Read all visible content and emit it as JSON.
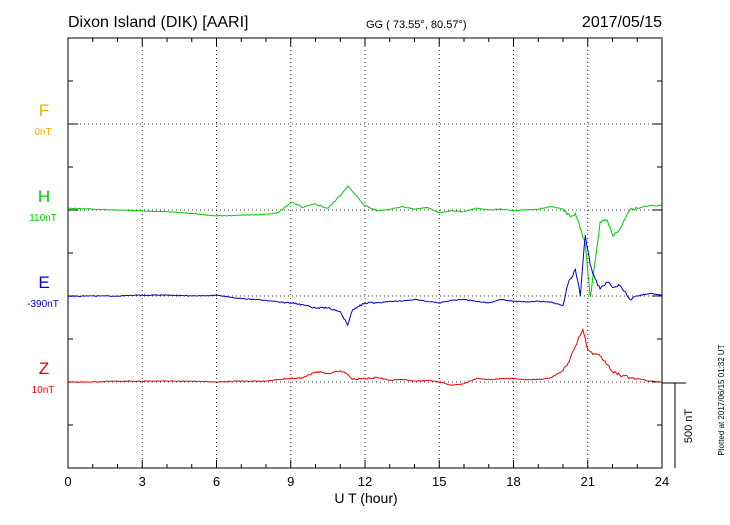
{
  "header": {
    "station": "Dixon Island (DIK)  [AARI]",
    "coords": "GG ( 73.55°,  80.57°)",
    "date": "2017/05/15"
  },
  "footer": {
    "plotted": "Plotted at 2017/06/15 01:32 UT"
  },
  "chart_data": {
    "type": "line",
    "title": "",
    "xlabel": "U T (hour)",
    "ylabel": "",
    "xlim": [
      0,
      24
    ],
    "x_ticks": [
      "0",
      "3",
      "6",
      "9",
      "12",
      "15",
      "18",
      "21",
      "24"
    ],
    "scale_bar": {
      "label": "500 nT",
      "value_nT": 500
    },
    "grid": true,
    "y_units": "nT (relative to each series baseline)",
    "panel_range_nT": [
      -1000,
      1500
    ],
    "components": [
      {
        "name": "F",
        "baseline_label": "0nT",
        "baseline_position_nT": 1000,
        "color": "#ffa500",
        "x": [],
        "y": []
      },
      {
        "name": "H",
        "baseline_label": "110nT",
        "baseline_position_nT": 500,
        "color": "#00cc00",
        "x": [
          0,
          1,
          2,
          3,
          4,
          5,
          6,
          7,
          8,
          8.5,
          9,
          9.5,
          10,
          10.5,
          11,
          11.3,
          11.5,
          12,
          12.5,
          13,
          13.5,
          14,
          14.5,
          15,
          15.5,
          16,
          16.5,
          17,
          17.5,
          18,
          18.5,
          19,
          19.5,
          20,
          20.3,
          20.5,
          20.7,
          20.9,
          21.1,
          21.3,
          21.5,
          21.8,
          22,
          22.3,
          22.7,
          23,
          23.5,
          24
        ],
        "y": [
          10,
          5,
          0,
          -5,
          -10,
          -20,
          -35,
          -30,
          -25,
          -15,
          45,
          15,
          35,
          10,
          85,
          140,
          105,
          25,
          -5,
          5,
          20,
          5,
          15,
          -15,
          -5,
          -10,
          10,
          0,
          5,
          -5,
          0,
          5,
          20,
          5,
          -40,
          -20,
          -110,
          -200,
          -505,
          -300,
          -70,
          -60,
          -150,
          -110,
          0,
          10,
          25,
          25
        ]
      },
      {
        "name": "E",
        "baseline_label": "-390nT",
        "baseline_position_nT": 0,
        "color": "#0000cc",
        "x": [
          0,
          1,
          2,
          3,
          4,
          5,
          6,
          7,
          8,
          8.5,
          9,
          9.5,
          10,
          10.5,
          11,
          11.3,
          11.5,
          12,
          12.5,
          13,
          13.5,
          14,
          14.5,
          15,
          15.5,
          16,
          16.5,
          17,
          17.5,
          18,
          18.5,
          19,
          19.5,
          20,
          20.2,
          20.5,
          20.7,
          20.9,
          21.1,
          21.3,
          21.5,
          21.8,
          22,
          22.3,
          22.7,
          23,
          23.5,
          24
        ],
        "y": [
          0,
          0,
          0,
          5,
          5,
          0,
          5,
          -15,
          -25,
          -35,
          -40,
          -50,
          -70,
          -70,
          -90,
          -170,
          -80,
          -40,
          -40,
          -30,
          -30,
          -20,
          -30,
          -40,
          -25,
          -20,
          -30,
          -40,
          -20,
          -30,
          -35,
          -30,
          -35,
          -55,
          70,
          155,
          0,
          355,
          180,
          100,
          40,
          80,
          50,
          60,
          -20,
          0,
          15,
          5
        ]
      },
      {
        "name": "Z",
        "baseline_label": "10nT",
        "baseline_position_nT": -500,
        "color": "#ee0000",
        "x": [
          0,
          1,
          2,
          3,
          4,
          5,
          6,
          7,
          8,
          8.5,
          9,
          9.5,
          10,
          10.5,
          11,
          11.3,
          11.5,
          12,
          12.5,
          13,
          13.5,
          14,
          14.5,
          15,
          15.5,
          16,
          16.5,
          17,
          17.5,
          18,
          18.5,
          19,
          19.5,
          20,
          20.3,
          20.6,
          20.8,
          21,
          21.2,
          21.5,
          21.8,
          22,
          22.3,
          22.7,
          23,
          23.5,
          24
        ],
        "y": [
          0,
          0,
          5,
          5,
          5,
          5,
          0,
          5,
          5,
          15,
          20,
          25,
          60,
          50,
          65,
          45,
          15,
          20,
          25,
          10,
          15,
          5,
          10,
          0,
          -20,
          -10,
          20,
          15,
          20,
          20,
          15,
          15,
          25,
          65,
          140,
          245,
          305,
          190,
          160,
          150,
          100,
          60,
          40,
          25,
          20,
          5,
          0
        ]
      }
    ]
  }
}
